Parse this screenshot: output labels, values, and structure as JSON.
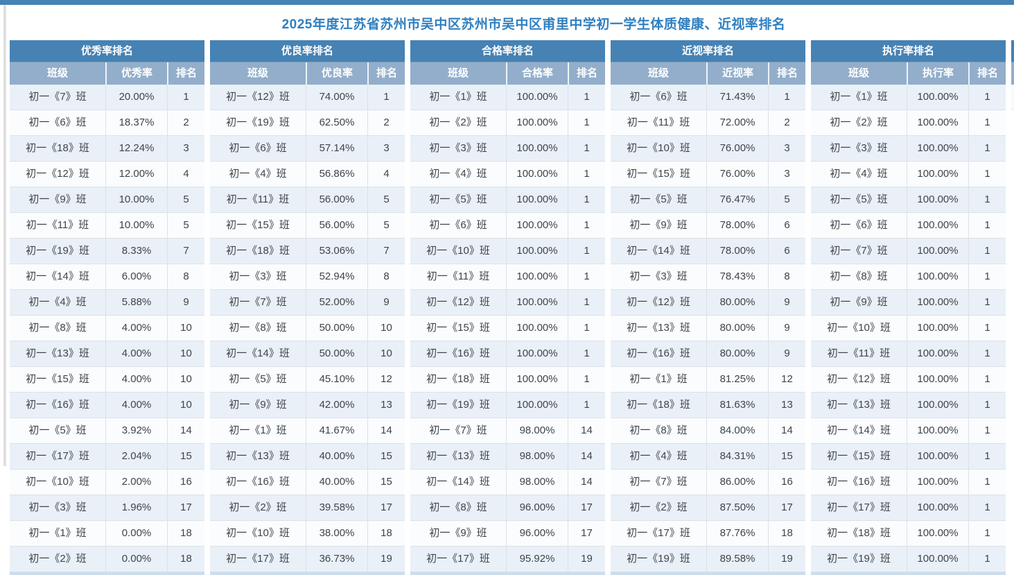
{
  "page": {
    "title": "2025年度江苏省苏州市吴中区苏州市吴中区甫里中学初一学生体质健康、近视率排名"
  },
  "colors": {
    "topbar": "#4682b4",
    "table_header_bg": "#4682b4",
    "table_subheader_bg": "#92aecb",
    "title_text": "#2e7fc1",
    "row_alternate_bg": "#e9f0f8",
    "partial_row_bg": "#ccddec"
  },
  "labels": {
    "class": "班级",
    "rank": "排名"
  },
  "tables": [
    {
      "title": "优秀率排名",
      "rate_header": "优秀率",
      "rows": [
        {
          "class": "初一《7》班",
          "rate": "20.00%",
          "rank": "1"
        },
        {
          "class": "初一《6》班",
          "rate": "18.37%",
          "rank": "2"
        },
        {
          "class": "初一《18》班",
          "rate": "12.24%",
          "rank": "3"
        },
        {
          "class": "初一《12》班",
          "rate": "12.00%",
          "rank": "4"
        },
        {
          "class": "初一《9》班",
          "rate": "10.00%",
          "rank": "5"
        },
        {
          "class": "初一《11》班",
          "rate": "10.00%",
          "rank": "5"
        },
        {
          "class": "初一《19》班",
          "rate": "8.33%",
          "rank": "7"
        },
        {
          "class": "初一《14》班",
          "rate": "6.00%",
          "rank": "8"
        },
        {
          "class": "初一《4》班",
          "rate": "5.88%",
          "rank": "9"
        },
        {
          "class": "初一《8》班",
          "rate": "4.00%",
          "rank": "10"
        },
        {
          "class": "初一《13》班",
          "rate": "4.00%",
          "rank": "10"
        },
        {
          "class": "初一《15》班",
          "rate": "4.00%",
          "rank": "10"
        },
        {
          "class": "初一《16》班",
          "rate": "4.00%",
          "rank": "10"
        },
        {
          "class": "初一《5》班",
          "rate": "3.92%",
          "rank": "14"
        },
        {
          "class": "初一《17》班",
          "rate": "2.04%",
          "rank": "15"
        },
        {
          "class": "初一《10》班",
          "rate": "2.00%",
          "rank": "16"
        },
        {
          "class": "初一《3》班",
          "rate": "1.96%",
          "rank": "17"
        },
        {
          "class": "初一《1》班",
          "rate": "0.00%",
          "rank": "18"
        },
        {
          "class": "初一《2》班",
          "rate": "0.00%",
          "rank": "18"
        }
      ]
    },
    {
      "title": "优良率排名",
      "rate_header": "优良率",
      "rows": [
        {
          "class": "初一《12》班",
          "rate": "74.00%",
          "rank": "1"
        },
        {
          "class": "初一《19》班",
          "rate": "62.50%",
          "rank": "2"
        },
        {
          "class": "初一《6》班",
          "rate": "57.14%",
          "rank": "3"
        },
        {
          "class": "初一《4》班",
          "rate": "56.86%",
          "rank": "4"
        },
        {
          "class": "初一《11》班",
          "rate": "56.00%",
          "rank": "5"
        },
        {
          "class": "初一《15》班",
          "rate": "56.00%",
          "rank": "5"
        },
        {
          "class": "初一《18》班",
          "rate": "53.06%",
          "rank": "7"
        },
        {
          "class": "初一《3》班",
          "rate": "52.94%",
          "rank": "8"
        },
        {
          "class": "初一《7》班",
          "rate": "52.00%",
          "rank": "9"
        },
        {
          "class": "初一《8》班",
          "rate": "50.00%",
          "rank": "10"
        },
        {
          "class": "初一《14》班",
          "rate": "50.00%",
          "rank": "10"
        },
        {
          "class": "初一《5》班",
          "rate": "45.10%",
          "rank": "12"
        },
        {
          "class": "初一《9》班",
          "rate": "42.00%",
          "rank": "13"
        },
        {
          "class": "初一《1》班",
          "rate": "41.67%",
          "rank": "14"
        },
        {
          "class": "初一《13》班",
          "rate": "40.00%",
          "rank": "15"
        },
        {
          "class": "初一《16》班",
          "rate": "40.00%",
          "rank": "15"
        },
        {
          "class": "初一《2》班",
          "rate": "39.58%",
          "rank": "17"
        },
        {
          "class": "初一《10》班",
          "rate": "38.00%",
          "rank": "18"
        },
        {
          "class": "初一《17》班",
          "rate": "36.73%",
          "rank": "19"
        }
      ]
    },
    {
      "title": "合格率排名",
      "rate_header": "合格率",
      "rows": [
        {
          "class": "初一《1》班",
          "rate": "100.00%",
          "rank": "1"
        },
        {
          "class": "初一《2》班",
          "rate": "100.00%",
          "rank": "1"
        },
        {
          "class": "初一《3》班",
          "rate": "100.00%",
          "rank": "1"
        },
        {
          "class": "初一《4》班",
          "rate": "100.00%",
          "rank": "1"
        },
        {
          "class": "初一《5》班",
          "rate": "100.00%",
          "rank": "1"
        },
        {
          "class": "初一《6》班",
          "rate": "100.00%",
          "rank": "1"
        },
        {
          "class": "初一《10》班",
          "rate": "100.00%",
          "rank": "1"
        },
        {
          "class": "初一《11》班",
          "rate": "100.00%",
          "rank": "1"
        },
        {
          "class": "初一《12》班",
          "rate": "100.00%",
          "rank": "1"
        },
        {
          "class": "初一《15》班",
          "rate": "100.00%",
          "rank": "1"
        },
        {
          "class": "初一《16》班",
          "rate": "100.00%",
          "rank": "1"
        },
        {
          "class": "初一《18》班",
          "rate": "100.00%",
          "rank": "1"
        },
        {
          "class": "初一《19》班",
          "rate": "100.00%",
          "rank": "1"
        },
        {
          "class": "初一《7》班",
          "rate": "98.00%",
          "rank": "14"
        },
        {
          "class": "初一《13》班",
          "rate": "98.00%",
          "rank": "14"
        },
        {
          "class": "初一《14》班",
          "rate": "98.00%",
          "rank": "14"
        },
        {
          "class": "初一《8》班",
          "rate": "96.00%",
          "rank": "17"
        },
        {
          "class": "初一《9》班",
          "rate": "96.00%",
          "rank": "17"
        },
        {
          "class": "初一《17》班",
          "rate": "95.92%",
          "rank": "19"
        }
      ]
    },
    {
      "title": "近视率排名",
      "rate_header": "近视率",
      "rows": [
        {
          "class": "初一《6》班",
          "rate": "71.43%",
          "rank": "1"
        },
        {
          "class": "初一《11》班",
          "rate": "72.00%",
          "rank": "2"
        },
        {
          "class": "初一《10》班",
          "rate": "76.00%",
          "rank": "3"
        },
        {
          "class": "初一《15》班",
          "rate": "76.00%",
          "rank": "3"
        },
        {
          "class": "初一《5》班",
          "rate": "76.47%",
          "rank": "5"
        },
        {
          "class": "初一《9》班",
          "rate": "78.00%",
          "rank": "6"
        },
        {
          "class": "初一《14》班",
          "rate": "78.00%",
          "rank": "6"
        },
        {
          "class": "初一《3》班",
          "rate": "78.43%",
          "rank": "8"
        },
        {
          "class": "初一《12》班",
          "rate": "80.00%",
          "rank": "9"
        },
        {
          "class": "初一《13》班",
          "rate": "80.00%",
          "rank": "9"
        },
        {
          "class": "初一《16》班",
          "rate": "80.00%",
          "rank": "9"
        },
        {
          "class": "初一《1》班",
          "rate": "81.25%",
          "rank": "12"
        },
        {
          "class": "初一《18》班",
          "rate": "81.63%",
          "rank": "13"
        },
        {
          "class": "初一《8》班",
          "rate": "84.00%",
          "rank": "14"
        },
        {
          "class": "初一《4》班",
          "rate": "84.31%",
          "rank": "15"
        },
        {
          "class": "初一《7》班",
          "rate": "86.00%",
          "rank": "16"
        },
        {
          "class": "初一《2》班",
          "rate": "87.50%",
          "rank": "17"
        },
        {
          "class": "初一《17》班",
          "rate": "87.76%",
          "rank": "18"
        },
        {
          "class": "初一《19》班",
          "rate": "89.58%",
          "rank": "19"
        }
      ]
    },
    {
      "title": "执行率排名",
      "rate_header": "执行率",
      "rows": [
        {
          "class": "初一《1》班",
          "rate": "100.00%",
          "rank": "1"
        },
        {
          "class": "初一《2》班",
          "rate": "100.00%",
          "rank": "1"
        },
        {
          "class": "初一《3》班",
          "rate": "100.00%",
          "rank": "1"
        },
        {
          "class": "初一《4》班",
          "rate": "100.00%",
          "rank": "1"
        },
        {
          "class": "初一《5》班",
          "rate": "100.00%",
          "rank": "1"
        },
        {
          "class": "初一《6》班",
          "rate": "100.00%",
          "rank": "1"
        },
        {
          "class": "初一《7》班",
          "rate": "100.00%",
          "rank": "1"
        },
        {
          "class": "初一《8》班",
          "rate": "100.00%",
          "rank": "1"
        },
        {
          "class": "初一《9》班",
          "rate": "100.00%",
          "rank": "1"
        },
        {
          "class": "初一《10》班",
          "rate": "100.00%",
          "rank": "1"
        },
        {
          "class": "初一《11》班",
          "rate": "100.00%",
          "rank": "1"
        },
        {
          "class": "初一《12》班",
          "rate": "100.00%",
          "rank": "1"
        },
        {
          "class": "初一《13》班",
          "rate": "100.00%",
          "rank": "1"
        },
        {
          "class": "初一《14》班",
          "rate": "100.00%",
          "rank": "1"
        },
        {
          "class": "初一《15》班",
          "rate": "100.00%",
          "rank": "1"
        },
        {
          "class": "初一《16》班",
          "rate": "100.00%",
          "rank": "1"
        },
        {
          "class": "初一《17》班",
          "rate": "100.00%",
          "rank": "1"
        },
        {
          "class": "初一《18》班",
          "rate": "100.00%",
          "rank": "1"
        },
        {
          "class": "初一《19》班",
          "rate": "100.00%",
          "rank": "1"
        }
      ]
    }
  ]
}
